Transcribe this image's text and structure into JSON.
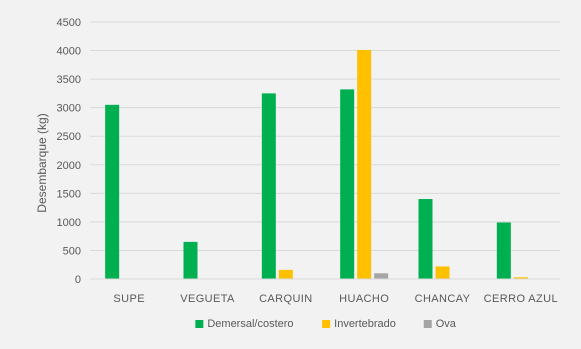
{
  "chart_data": {
    "type": "bar",
    "title": "",
    "xlabel": "",
    "ylabel": "Desembarque (kg)",
    "ylim": [
      0,
      4500
    ],
    "yticks": [
      0,
      500,
      1000,
      1500,
      2000,
      2500,
      3000,
      3500,
      4000,
      4500
    ],
    "grid": true,
    "legend_position": "bottom",
    "categories": [
      "SUPE",
      "VEGUETA",
      "CARQUIN",
      "HUACHO",
      "CHANCAY",
      "CERRO AZUL"
    ],
    "series": [
      {
        "name": "Demersal/costero",
        "color": "#00b050",
        "values": [
          3050,
          650,
          3250,
          3320,
          1400,
          990
        ]
      },
      {
        "name": "Invertebrado",
        "color": "#ffc000",
        "values": [
          0,
          0,
          160,
          4010,
          220,
          30
        ]
      },
      {
        "name": "Ova",
        "color": "#a5a5a5",
        "values": [
          0,
          0,
          0,
          100,
          0,
          0
        ]
      }
    ]
  }
}
